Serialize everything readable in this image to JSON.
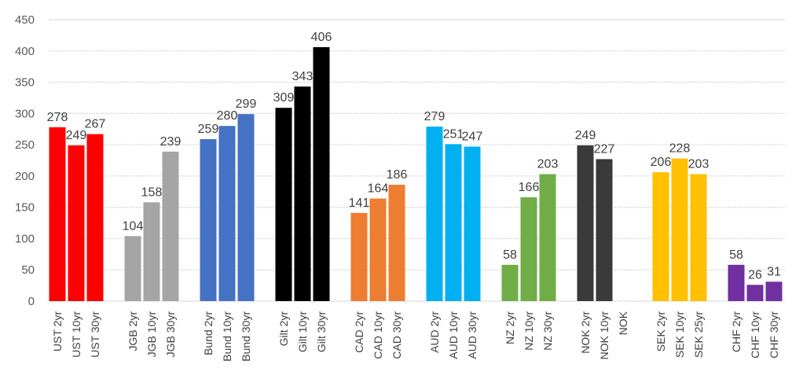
{
  "chart_data": {
    "type": "bar",
    "title": "",
    "xlabel": "",
    "ylabel": "",
    "ylim": [
      0,
      450
    ],
    "yticks": [
      0,
      50,
      100,
      150,
      200,
      250,
      300,
      350,
      400,
      450
    ],
    "grid": true,
    "legend": "none",
    "groups": [
      {
        "name": "UST",
        "color": "#FF0000",
        "categories": [
          "UST 2yr",
          "UST 10yr",
          "UST 30yr"
        ],
        "values": [
          278,
          249,
          267
        ]
      },
      {
        "name": "JGB",
        "color": "#A5A5A5",
        "categories": [
          "JGB 2yr",
          "JGB 10yr",
          "JGB 30yr"
        ],
        "values": [
          104,
          158,
          239
        ]
      },
      {
        "name": "Bund",
        "color": "#4472C4",
        "categories": [
          "Bund 2yr",
          "Bund 10yr",
          "Bund 30yr"
        ],
        "values": [
          259,
          280,
          299
        ]
      },
      {
        "name": "Gilt",
        "color": "#000000",
        "categories": [
          "Gilt 2yr",
          "Gilt 10yr",
          "Gilt 30yr"
        ],
        "values": [
          309,
          343,
          406
        ]
      },
      {
        "name": "CAD",
        "color": "#ED7D31",
        "categories": [
          "CAD 2yr",
          "CAD 10yr",
          "CAD 30yr"
        ],
        "values": [
          141,
          164,
          186
        ]
      },
      {
        "name": "AUD",
        "color": "#00B0F0",
        "categories": [
          "AUD 2yr",
          "AUD 10yr",
          "AUD 30yr"
        ],
        "values": [
          279,
          251,
          247
        ]
      },
      {
        "name": "NZ",
        "color": "#70AD47",
        "categories": [
          "NZ 2yr",
          "NZ 10yr",
          "NZ 30yr"
        ],
        "values": [
          58,
          166,
          203
        ]
      },
      {
        "name": "NOK",
        "color": "#3A3A3A",
        "categories": [
          "NOK 2yr",
          "NOK 10yr",
          "NOK"
        ],
        "values": [
          249,
          227,
          null
        ]
      },
      {
        "name": "SEK",
        "color": "#FFC000",
        "categories": [
          "SEK 2yr",
          "SEK 10yr",
          "SEK 25yr"
        ],
        "values": [
          206,
          228,
          203
        ]
      },
      {
        "name": "CHF",
        "color": "#7030A0",
        "categories": [
          "CHF 2yr",
          "CHF 10yr",
          "CHF 30yr"
        ],
        "values": [
          58,
          26,
          31
        ]
      }
    ]
  }
}
